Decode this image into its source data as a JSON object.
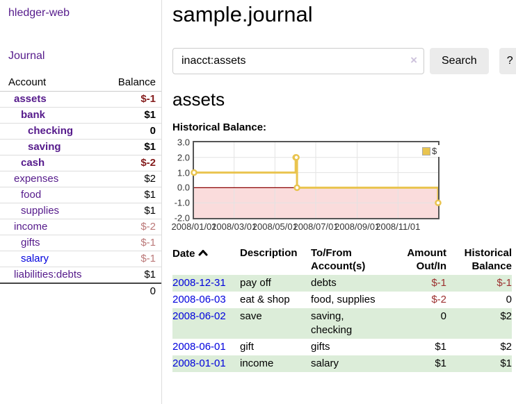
{
  "sidebar": {
    "brand": "hledger-web",
    "nav": {
      "journal": "Journal"
    },
    "accounts_table": {
      "headers": {
        "account": "Account",
        "balance": "Balance"
      },
      "accounts": [
        {
          "name": "assets",
          "balance": "$-1",
          "depth": 1,
          "bold": true,
          "balance_style": "neg-strong"
        },
        {
          "name": "bank",
          "balance": "$1",
          "depth": 2,
          "bold": true,
          "balance_style": "pos"
        },
        {
          "name": "checking",
          "balance": "0",
          "depth": 3,
          "bold": true,
          "balance_style": "pos"
        },
        {
          "name": "saving",
          "balance": "$1",
          "depth": 3,
          "bold": true,
          "balance_style": "pos"
        },
        {
          "name": "cash",
          "balance": "$-2",
          "depth": 2,
          "bold": true,
          "balance_style": "neg-strong"
        },
        {
          "name": "expenses",
          "balance": "$2",
          "depth": 1,
          "bold": false,
          "balance_style": "pos"
        },
        {
          "name": "food",
          "balance": "$1",
          "depth": 2,
          "bold": false,
          "balance_style": "pos"
        },
        {
          "name": "supplies",
          "balance": "$1",
          "depth": 2,
          "bold": false,
          "balance_style": "pos"
        },
        {
          "name": "income",
          "balance": "$-2",
          "depth": 1,
          "bold": false,
          "balance_style": "neg-light"
        },
        {
          "name": "gifts",
          "balance": "$-1",
          "depth": 2,
          "bold": false,
          "balance_style": "neg-light"
        },
        {
          "name": "salary",
          "balance": "$-1",
          "depth": 2,
          "bold": false,
          "balance_style": "neg-light",
          "link_color": "blue"
        },
        {
          "name": "liabilities:debts",
          "balance": "$1",
          "depth": 1,
          "bold": false,
          "balance_style": "pos"
        }
      ],
      "total": "0"
    }
  },
  "header": {
    "title": "sample.journal"
  },
  "search": {
    "query": "inacct:assets",
    "clear_icon": "×",
    "search_label": "Search",
    "help_label": "?"
  },
  "register": {
    "account_heading": "assets",
    "chart_title": "Historical Balance:"
  },
  "chart_data": {
    "type": "line",
    "style": "step-after",
    "title": "Historical Balance",
    "series": [
      {
        "name": "$",
        "color": "#e9c44f",
        "points": [
          {
            "date": "2008-01-01",
            "value": 1
          },
          {
            "date": "2008-06-01",
            "value": 2
          },
          {
            "date": "2008-06-02",
            "value": 2
          },
          {
            "date": "2008-06-03",
            "value": 0
          },
          {
            "date": "2008-12-31",
            "value": -1
          }
        ]
      }
    ],
    "x_range": [
      "2008-01-01",
      "2008-12-31"
    ],
    "x_ticks": [
      {
        "date": "2008-01-01",
        "label": "2008/01/01"
      },
      {
        "date": "2008-03-01",
        "label": "2008/03/01"
      },
      {
        "date": "2008-05-01",
        "label": "2008/05/01"
      },
      {
        "date": "2008-07-01",
        "label": "2008/07/01"
      },
      {
        "date": "2008-09-01",
        "label": "2008/09/01"
      },
      {
        "date": "2008-11-01",
        "label": "2008/11/01"
      }
    ],
    "y_ticks": [
      3.0,
      2.0,
      1.0,
      0.0,
      -1.0,
      -2.0
    ],
    "ylim": [
      -2,
      3
    ],
    "grid": true,
    "legend": {
      "label": "$",
      "position": "top-right"
    },
    "negative_region_color": "#fadcdc",
    "zero_line_color": "#8b0000"
  },
  "transactions": {
    "headers": {
      "date": "Date",
      "description": "Description",
      "accounts": "To/From Account(s)",
      "amount": "Amount Out/In",
      "balance": "Historical Balance"
    },
    "rows": [
      {
        "date": "2008-12-31",
        "description": "pay off",
        "accounts": "debts",
        "amount": "$-1",
        "amount_neg": true,
        "balance": "$-1",
        "balance_neg": true
      },
      {
        "date": "2008-06-03",
        "description": "eat & shop",
        "accounts": "food, supplies",
        "amount": "$-2",
        "amount_neg": true,
        "balance": "0",
        "balance_neg": false
      },
      {
        "date": "2008-06-02",
        "description": "save",
        "accounts": "saving, checking",
        "amount": "0",
        "amount_neg": false,
        "balance": "$2",
        "balance_neg": false
      },
      {
        "date": "2008-06-01",
        "description": "gift",
        "accounts": "gifts",
        "amount": "$1",
        "amount_neg": false,
        "balance": "$2",
        "balance_neg": false
      },
      {
        "date": "2008-01-01",
        "description": "income",
        "accounts": "salary",
        "amount": "$1",
        "amount_neg": false,
        "balance": "$1",
        "balance_neg": false
      }
    ]
  },
  "colors": {
    "link_purple": "#551a8b",
    "link_blue": "#0000dd",
    "negative_strong": "#841c1c",
    "negative_table": "#9c2f2f",
    "negative_light": "#bb7878",
    "row_green": "#dcedd9",
    "chart_gold": "#e9c44f",
    "chart_negative_fill": "#fadcdc",
    "chart_zero_line": "#8b0000",
    "button_gray": "#ebebeb"
  }
}
